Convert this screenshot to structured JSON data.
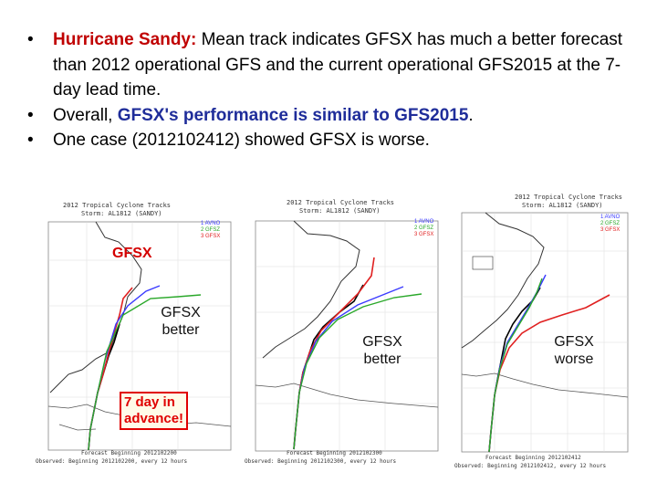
{
  "bullets": [
    {
      "lead": "Hurricane Sandy:",
      "text": " Mean track indicates GFSX has much a better forecast than 2012 operational GFS and the current operational GFS2015 at the 7-day lead time."
    },
    {
      "pre": "Overall, ",
      "highlight": "GFSX's performance is similar to GFS2015",
      "post": "."
    },
    {
      "text": "One case (2012102412) showed GFSX is worse."
    }
  ],
  "panels": [
    {
      "title": "2012 Tropical Cyclone Tracks",
      "storm": "Storm: AL1812 (SANDY)",
      "legend": [
        "1 AVNO",
        "2 GFSZ",
        "3 GFSX"
      ],
      "forecast": "Forecast Beginning 2012102200",
      "observed": "Observed: Beginning 2012102200, every 12 hours",
      "overlay_red": "GFSX",
      "label": "GFSX\nbetter",
      "callout": "7 day in\nadvance!"
    },
    {
      "title": "2012 Tropical Cyclone Tracks",
      "storm": "Storm: AL1812 (SANDY)",
      "legend": [
        "1 AVNO",
        "2 GFSZ",
        "3 GFSX"
      ],
      "forecast": "Forecast Beginning 2012102300",
      "observed": "Observed: Beginning 2012102300, every 12 hours",
      "label": "GFSX\nbetter"
    },
    {
      "title": "2012 Tropical Cyclone Tracks",
      "storm": "Storm: AL1812 (SANDY)",
      "legend": [
        "1 AVNO",
        "2 GFSZ",
        "3 GFSX"
      ],
      "forecast": "Forecast Beginning 2012102412",
      "observed": "Observed: Beginning 2012102412, every 12 hours",
      "label": "GFSX\nworse"
    }
  ],
  "colors": {
    "avno": "#3a3aff",
    "gfsz": "#2aa82a",
    "gfsx": "#e02020",
    "obs": "#000000",
    "land": "#ffffff",
    "coast": "#333333"
  }
}
